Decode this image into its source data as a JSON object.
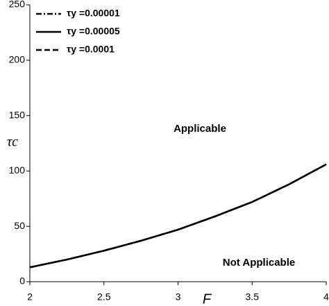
{
  "chart_data": {
    "type": "line",
    "x_label": "F",
    "y_label": "τc",
    "x": [
      2,
      2.25,
      2.5,
      2.75,
      3,
      3.25,
      3.5,
      3.75,
      4
    ],
    "series": [
      {
        "name": "τy =0.00001",
        "color": "#000000",
        "linestyle": "dashdot",
        "values": [
          13,
          20,
          28,
          37,
          47,
          59,
          72,
          88,
          106
        ]
      },
      {
        "name": "τy =0.00005",
        "color": "#000000",
        "linestyle": "solid",
        "values": [
          13,
          20,
          28,
          37,
          47,
          59,
          72,
          88,
          106
        ]
      },
      {
        "name": "τy =0.0001",
        "color": "#000000",
        "linestyle": "dashed",
        "values": [
          13,
          20,
          28,
          37,
          47,
          59,
          72,
          88,
          106
        ]
      }
    ],
    "annotations": [
      "Applicable",
      "Not Applicable"
    ],
    "xlim": [
      2,
      4
    ],
    "xticks": [
      2,
      2.5,
      3,
      3.5,
      4
    ],
    "ylim": [
      0,
      250
    ],
    "yticks": [
      0,
      50,
      100,
      150,
      200,
      250
    ],
    "grid": false,
    "legend": "upper left"
  }
}
